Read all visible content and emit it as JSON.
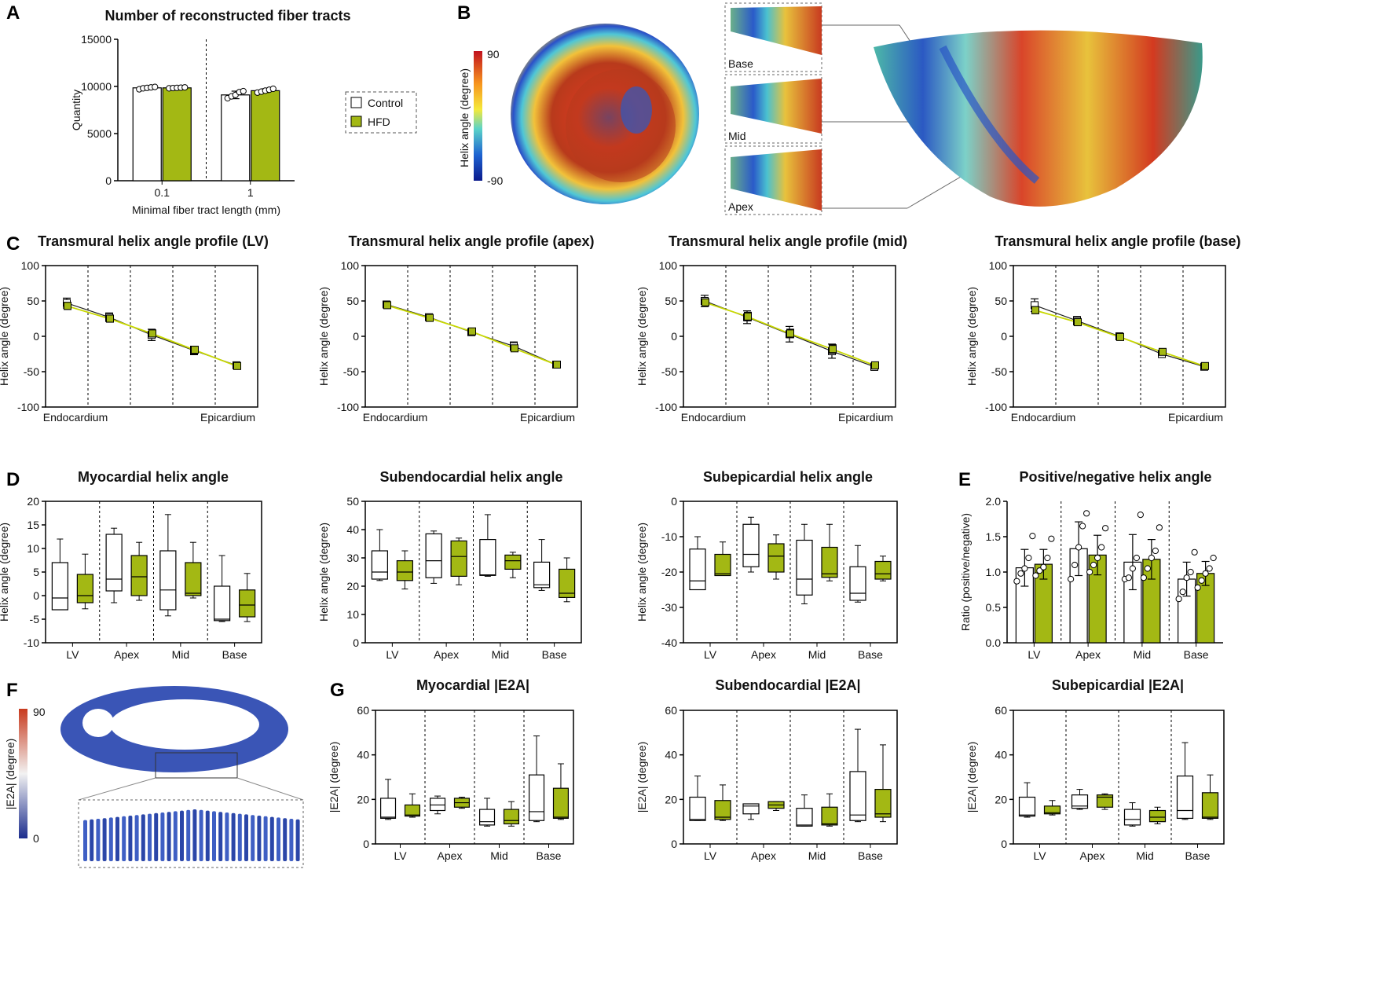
{
  "colors": {
    "control": "#ffffff",
    "hfd": "#a3b814",
    "hfd_line": "#c8d800",
    "axis": "#000000"
  },
  "letters": [
    "A",
    "B",
    "C",
    "D",
    "E",
    "F",
    "G"
  ],
  "legend": {
    "control": "Control",
    "hfd": "HFD"
  },
  "image_b": {
    "colorbar_label": "Helix angle (degree)",
    "max": "90",
    "min": "-90",
    "insets": [
      "Base",
      "Mid",
      "Apex"
    ]
  },
  "image_f": {
    "colorbar_label": "|E2A| (degree)",
    "max": "90",
    "min": "0"
  },
  "chart_data": [
    {
      "id": "A",
      "type": "bar",
      "title": "Number of reconstructed fiber tracts",
      "xlabel": "Minimal fiber tract length (mm)",
      "ylabel": "Quantity",
      "categories": [
        "0.1",
        "1"
      ],
      "ylim": [
        0,
        15000
      ],
      "yticks": [
        "0",
        "5000",
        "10000",
        "15000"
      ],
      "series": [
        {
          "name": "Control",
          "values": [
            9850,
            9100
          ],
          "sd": [
            120,
            400
          ],
          "points": [
            [
              9700,
              9800,
              9850,
              9900,
              9950
            ],
            [
              8750,
              8950,
              9100,
              9400,
              9500
            ]
          ]
        },
        {
          "name": "HFD",
          "values": [
            9850,
            9550
          ],
          "sd": [
            60,
            200
          ],
          "points": [
            [
              9800,
              9830,
              9850,
              9870,
              9900
            ],
            [
              9350,
              9450,
              9550,
              9650,
              9750
            ]
          ]
        }
      ]
    },
    {
      "id": "C1",
      "type": "line",
      "title": "Transmural helix angle profile (LV)",
      "ylabel": "Helix angle (degree)",
      "ylim": [
        -100,
        100
      ],
      "yticks": [
        "100",
        "50",
        "0",
        "-50",
        "-100"
      ],
      "xlabels": [
        "Endocardium",
        "Epicardium"
      ],
      "series": [
        {
          "name": "Control",
          "values": [
            47,
            27,
            2,
            -20,
            -41
          ],
          "sd": [
            7,
            6,
            8,
            6,
            3
          ]
        },
        {
          "name": "HFD",
          "values": [
            43,
            25,
            4,
            -19,
            -42
          ],
          "sd": [
            5,
            5,
            5,
            4,
            2
          ]
        }
      ]
    },
    {
      "id": "C2",
      "type": "line",
      "title": "Transmural helix angle profile (apex)",
      "ylabel": "Helix angle (degree)",
      "ylim": [
        -100,
        100
      ],
      "yticks": [
        "100",
        "50",
        "0",
        "-50",
        "-100"
      ],
      "xlabels": [
        "Endocardium",
        "Epicardium"
      ],
      "series": [
        {
          "name": "Control",
          "values": [
            45,
            27,
            6,
            -14,
            -40
          ],
          "sd": [
            4,
            4,
            5,
            6,
            3
          ]
        },
        {
          "name": "HFD",
          "values": [
            44,
            26,
            7,
            -17,
            -40
          ],
          "sd": [
            3,
            3,
            4,
            4,
            3
          ]
        }
      ]
    },
    {
      "id": "C3",
      "type": "line",
      "title": "Transmural helix angle profile (mid)",
      "ylabel": "Helix angle (degree)",
      "ylim": [
        -100,
        100
      ],
      "yticks": [
        "100",
        "50",
        "0",
        "-50",
        "-100"
      ],
      "xlabels": [
        "Endocardium",
        "Epicardium"
      ],
      "series": [
        {
          "name": "Control",
          "values": [
            50,
            27,
            3,
            -21,
            -43
          ],
          "sd": [
            8,
            9,
            11,
            10,
            5
          ]
        },
        {
          "name": "HFD",
          "values": [
            48,
            28,
            4,
            -18,
            -41
          ],
          "sd": [
            5,
            6,
            6,
            6,
            4
          ]
        }
      ]
    },
    {
      "id": "C4",
      "type": "line",
      "title": "Transmural helix angle profile (base)",
      "ylabel": "Helix angle (degree)",
      "ylim": [
        -100,
        100
      ],
      "yticks": [
        "100",
        "50",
        "0",
        "-50",
        "-100"
      ],
      "xlabels": [
        "Endocardium",
        "Epicardium"
      ],
      "series": [
        {
          "name": "Control",
          "values": [
            44,
            22,
            0,
            -25,
            -43
          ],
          "sd": [
            9,
            6,
            4,
            5,
            3
          ]
        },
        {
          "name": "HFD",
          "values": [
            37,
            20,
            -1,
            -22,
            -42
          ],
          "sd": [
            5,
            5,
            4,
            4,
            3
          ]
        }
      ]
    },
    {
      "id": "D1",
      "type": "box",
      "title": "Myocardial helix angle",
      "ylabel": "Helix angle (degree)",
      "ylim": [
        -10,
        20
      ],
      "yticks": [
        "20",
        "15",
        "10",
        "5",
        "0",
        "-5",
        "-10"
      ],
      "categories": [
        "LV",
        "Apex",
        "Mid",
        "Base"
      ],
      "series": [
        {
          "name": "Control",
          "boxes": [
            [
              -3,
              -3,
              -0.5,
              7,
              12
            ],
            [
              -1.5,
              1,
              3.5,
              13,
              14.3
            ],
            [
              -4.3,
              -3,
              1.2,
              9.5,
              17.2
            ],
            [
              -5.5,
              -5.3,
              -5,
              2,
              8.5
            ]
          ]
        },
        {
          "name": "HFD",
          "boxes": [
            [
              -2.8,
              -1.5,
              0,
              4.5,
              8.8
            ],
            [
              -1,
              0,
              4,
              8.5,
              11.3
            ],
            [
              -0.5,
              0,
              0.5,
              7,
              11.3
            ],
            [
              -5.5,
              -4.5,
              -2,
              1.2,
              4.7
            ]
          ]
        }
      ]
    },
    {
      "id": "D2",
      "type": "box",
      "title": "Subendocardial helix angle",
      "ylabel": "Helix angle (degree)",
      "ylim": [
        0,
        50
      ],
      "yticks": [
        "50",
        "40",
        "30",
        "20",
        "10",
        "0"
      ],
      "categories": [
        "LV",
        "Apex",
        "Mid",
        "Base"
      ],
      "series": [
        {
          "name": "Control",
          "boxes": [
            [
              22,
              22.5,
              25,
              32.5,
              40
            ],
            [
              21,
              23,
              29,
              38.5,
              39.5
            ],
            [
              23.5,
              23.8,
              24,
              36.5,
              45.3
            ],
            [
              18.5,
              19.5,
              20.5,
              28.5,
              36.5
            ]
          ]
        },
        {
          "name": "HFD",
          "boxes": [
            [
              19,
              22,
              25,
              29,
              32.5
            ],
            [
              20.5,
              23.5,
              30.5,
              36,
              37
            ],
            [
              23,
              26,
              29,
              31,
              32
            ],
            [
              14.5,
              16,
              17.5,
              26,
              30
            ]
          ]
        }
      ]
    },
    {
      "id": "D3",
      "type": "box",
      "title": "Subepicardial helix angle",
      "ylabel": "Helix angle (degree)",
      "ylim": [
        -40,
        0
      ],
      "yticks": [
        "0",
        "-10",
        "-20",
        "-30",
        "-40"
      ],
      "categories": [
        "LV",
        "Apex",
        "Mid",
        "Base"
      ],
      "series": [
        {
          "name": "Control",
          "boxes": [
            [
              -25,
              -25,
              -22.5,
              -13.5,
              -10
            ],
            [
              -20,
              -18.5,
              -15,
              -6.5,
              -4.5
            ],
            [
              -29,
              -26.5,
              -22,
              -11,
              -6.5
            ],
            [
              -28.5,
              -28,
              -26,
              -18.5,
              -12.5
            ]
          ]
        },
        {
          "name": "HFD",
          "boxes": [
            [
              -21,
              -21,
              -20.5,
              -15,
              -11.5
            ],
            [
              -22,
              -20,
              -15.5,
              -12,
              -9.5
            ],
            [
              -22.5,
              -21.5,
              -20.5,
              -13,
              -6.5
            ],
            [
              -22.5,
              -22,
              -20.5,
              -17,
              -15.5
            ]
          ]
        }
      ]
    },
    {
      "id": "E",
      "type": "bar",
      "title": "Positive/negative helix angle",
      "ylabel": "Ratio (positive/negative)",
      "ylim": [
        0,
        2
      ],
      "yticks": [
        "2.0",
        "1.5",
        "1.0",
        "0.5",
        "0.0"
      ],
      "categories": [
        "LV",
        "Apex",
        "Mid",
        "Base"
      ],
      "series": [
        {
          "name": "Control",
          "values": [
            1.06,
            1.33,
            1.14,
            0.9
          ],
          "sd": [
            0.26,
            0.38,
            0.39,
            0.24
          ],
          "points": [
            [
              0.87,
              0.98,
              1.05,
              1.2,
              1.51
            ],
            [
              0.9,
              1.1,
              1.35,
              1.65,
              1.83
            ],
            [
              0.9,
              0.92,
              1.05,
              1.2,
              1.81
            ],
            [
              0.62,
              0.72,
              0.92,
              1.0,
              1.28
            ]
          ]
        },
        {
          "name": "HFD",
          "values": [
            1.11,
            1.24,
            1.18,
            0.98
          ],
          "sd": [
            0.21,
            0.28,
            0.28,
            0.17
          ],
          "points": [
            [
              0.95,
              1.02,
              1.07,
              1.2,
              1.47
            ],
            [
              1.0,
              1.1,
              1.2,
              1.35,
              1.62
            ],
            [
              0.92,
              1.05,
              1.2,
              1.3,
              1.63
            ],
            [
              0.78,
              0.88,
              0.98,
              1.05,
              1.2
            ]
          ]
        }
      ]
    },
    {
      "id": "G1",
      "type": "box",
      "title": "Myocardial |E2A|",
      "ylabel": "|E2A| (degree)",
      "ylim": [
        0,
        60
      ],
      "yticks": [
        "60",
        "40",
        "20",
        "0"
      ],
      "categories": [
        "LV",
        "Apex",
        "Mid",
        "Base"
      ],
      "series": [
        {
          "name": "Control",
          "boxes": [
            [
              11,
              11.5,
              12,
              20.5,
              29
            ],
            [
              13.5,
              15,
              17.5,
              20.5,
              21.5
            ],
            [
              8,
              8.5,
              10,
              15.5,
              20.5
            ],
            [
              10,
              10.5,
              14.5,
              31,
              48.5
            ]
          ]
        },
        {
          "name": "HFD",
          "boxes": [
            [
              12,
              12.5,
              13,
              17.5,
              22.5
            ],
            [
              16,
              16.5,
              18.5,
              20.5,
              21
            ],
            [
              8,
              9,
              10.5,
              15.5,
              19
            ],
            [
              11,
              11.5,
              12,
              25,
              36
            ]
          ]
        }
      ]
    },
    {
      "id": "G2",
      "type": "box",
      "title": "Subendocardial |E2A|",
      "ylabel": "|E2A| (degree)",
      "ylim": [
        0,
        60
      ],
      "yticks": [
        "60",
        "40",
        "20",
        "0"
      ],
      "categories": [
        "LV",
        "Apex",
        "Mid",
        "Base"
      ],
      "series": [
        {
          "name": "Control",
          "boxes": [
            [
              10.5,
              10.5,
              11,
              21,
              30.5
            ],
            [
              11,
              13.5,
              17,
              18,
              18
            ],
            [
              8,
              8,
              8.5,
              16,
              22
            ],
            [
              10,
              10.5,
              13,
              32.5,
              51.5
            ]
          ]
        },
        {
          "name": "HFD",
          "boxes": [
            [
              10.5,
              11,
              12,
              19.5,
              26.5
            ],
            [
              15,
              16,
              17.5,
              19,
              19
            ],
            [
              8,
              8.5,
              9,
              16.5,
              22.5
            ],
            [
              10,
              12,
              13.5,
              24.5,
              44.5
            ]
          ]
        }
      ]
    },
    {
      "id": "G3",
      "type": "box",
      "title": "Subepicardial |E2A|",
      "ylabel": "|E2A| (degree)",
      "ylim": [
        0,
        60
      ],
      "yticks": [
        "60",
        "40",
        "20",
        "0"
      ],
      "categories": [
        "LV",
        "Apex",
        "Mid",
        "Base"
      ],
      "series": [
        {
          "name": "Control",
          "boxes": [
            [
              12,
              12.5,
              13,
              21,
              27.5
            ],
            [
              15.5,
              16,
              17,
              22,
              24.5
            ],
            [
              8,
              8.5,
              11,
              15.5,
              18.5
            ],
            [
              11,
              11.5,
              15,
              30.5,
              45.5
            ]
          ]
        },
        {
          "name": "HFD",
          "boxes": [
            [
              13,
              13.5,
              14,
              17,
              19.5
            ],
            [
              15.5,
              16.5,
              21,
              22,
              22.5
            ],
            [
              9,
              10,
              12,
              15,
              16.5
            ],
            [
              11,
              11.5,
              12,
              23,
              31
            ]
          ]
        }
      ]
    }
  ]
}
